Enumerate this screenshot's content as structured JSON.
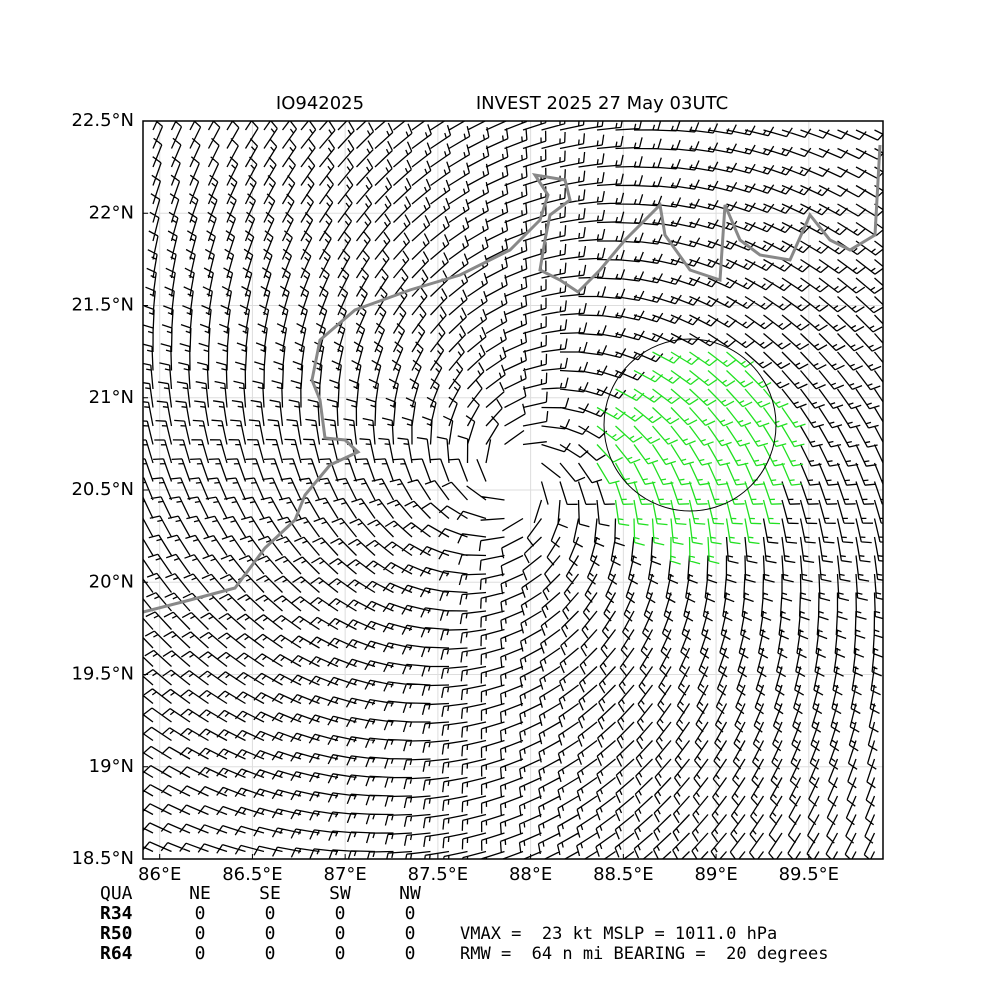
{
  "header": {
    "storm_id": "IO942025",
    "title": "INVEST 2025 27 May 03UTC"
  },
  "map": {
    "xlim": [
      85.91,
      89.9
    ],
    "ylim": [
      18.5,
      22.5
    ],
    "xticks": [
      {
        "value": 86,
        "label": "86°E"
      },
      {
        "value": 86.5,
        "label": "86.5°E"
      },
      {
        "value": 87,
        "label": "87°E"
      },
      {
        "value": 87.5,
        "label": "87.5°E"
      },
      {
        "value": 88,
        "label": "88°E"
      },
      {
        "value": 88.5,
        "label": "88.5°E"
      },
      {
        "value": 89,
        "label": "89°E"
      },
      {
        "value": 89.5,
        "label": "89.5°E"
      }
    ],
    "yticks": [
      {
        "value": 18.5,
        "label": "18.5°N"
      },
      {
        "value": 19,
        "label": "19°N"
      },
      {
        "value": 19.5,
        "label": "19.5°N"
      },
      {
        "value": 20,
        "label": "20°N"
      },
      {
        "value": 20.5,
        "label": "20.5°N"
      },
      {
        "value": 21,
        "label": "21°N"
      },
      {
        "value": 21.5,
        "label": "21.5°N"
      },
      {
        "value": 22,
        "label": "22°N"
      },
      {
        "value": 22.5,
        "label": "22.5°N"
      }
    ],
    "grid": true
  },
  "table": {
    "columns": [
      "QUA",
      "NE",
      "SE",
      "SW",
      "NW"
    ],
    "rows": [
      [
        "R34",
        0,
        0,
        0,
        0
      ],
      [
        "R50",
        0,
        0,
        0,
        0
      ],
      [
        "R64",
        0,
        0,
        0,
        0
      ]
    ]
  },
  "info": [
    "VMAX =  23 kt MSLP = 1011.0 hPa",
    "RMW =  64 n mi BEARING =  20 degrees"
  ]
}
